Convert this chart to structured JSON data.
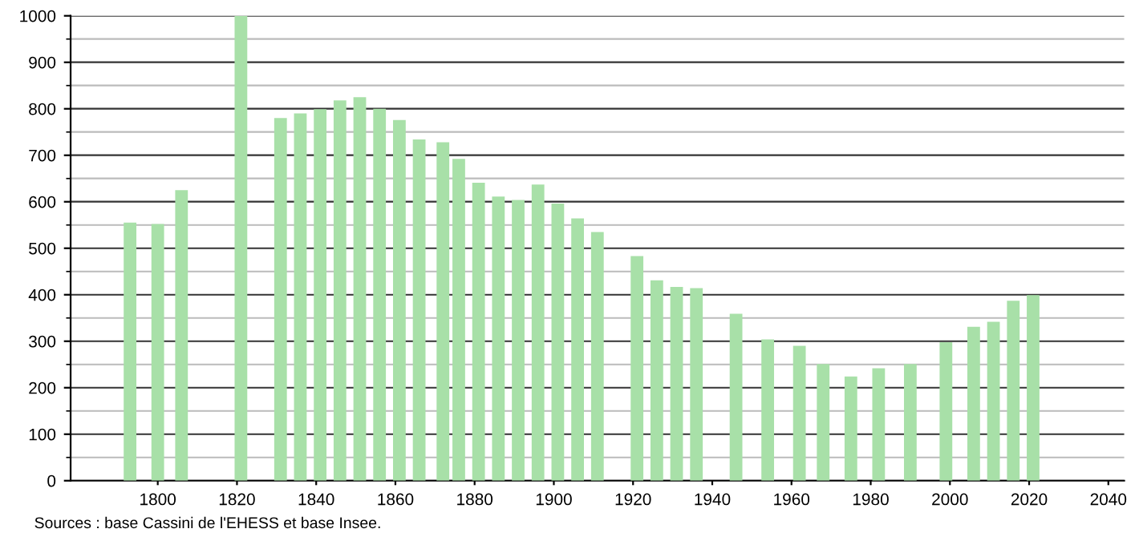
{
  "chart_data": {
    "type": "bar",
    "x": [
      1793,
      1800,
      1806,
      1821,
      1831,
      1836,
      1841,
      1846,
      1851,
      1856,
      1861,
      1866,
      1872,
      1876,
      1881,
      1886,
      1891,
      1896,
      1901,
      1906,
      1911,
      1921,
      1926,
      1931,
      1936,
      1946,
      1954,
      1962,
      1968,
      1975,
      1982,
      1990,
      1999,
      2006,
      2011,
      2016,
      2021
    ],
    "values": [
      555,
      552,
      625,
      1000,
      780,
      790,
      799,
      818,
      825,
      800,
      776,
      734,
      728,
      692,
      641,
      611,
      604,
      637,
      596,
      564,
      535,
      483,
      431,
      417,
      414,
      359,
      304,
      290,
      251,
      224,
      242,
      251,
      298,
      331,
      342,
      387,
      399
    ],
    "color": "#a8e0a8",
    "xlim": [
      1778,
      2044
    ],
    "xticks": [
      1800,
      1820,
      1840,
      1860,
      1880,
      1900,
      1920,
      1940,
      1960,
      1980,
      2000,
      2020,
      2040
    ],
    "ylim": [
      0,
      1000
    ],
    "yticks": [
      0,
      100,
      200,
      300,
      400,
      500,
      600,
      700,
      800,
      900,
      1000
    ],
    "grid": "y",
    "annotations": [
      "Sources : base Cassini de l'EHESS et base Insee."
    ]
  }
}
